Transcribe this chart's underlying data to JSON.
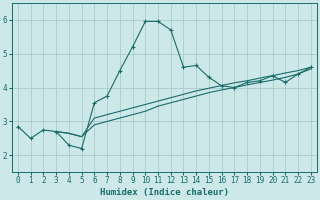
{
  "xlabel": "Humidex (Indice chaleur)",
  "bg_color": "#cce8e8",
  "grid_color": "#aacccc",
  "line_color": "#1a6b6b",
  "xlim": [
    -0.5,
    23.5
  ],
  "ylim": [
    1.5,
    6.5
  ],
  "yticks": [
    2,
    3,
    4,
    5,
    6
  ],
  "xticks": [
    0,
    1,
    2,
    3,
    4,
    5,
    6,
    7,
    8,
    9,
    10,
    11,
    12,
    13,
    14,
    15,
    16,
    17,
    18,
    19,
    20,
    21,
    22,
    23
  ],
  "curve1_x": [
    0,
    1,
    2,
    3,
    4,
    5,
    6,
    7,
    8,
    9,
    10,
    11,
    12,
    13,
    14,
    15,
    16,
    17,
    18,
    19,
    20,
    21,
    22,
    23
  ],
  "curve1_y": [
    2.85,
    2.5,
    2.75,
    2.7,
    2.3,
    2.2,
    3.55,
    3.75,
    4.5,
    5.2,
    5.95,
    5.95,
    5.7,
    4.6,
    4.65,
    4.3,
    4.05,
    4.0,
    4.15,
    4.2,
    4.35,
    4.15,
    4.4,
    4.6
  ],
  "curve2_x": [
    3,
    4,
    5,
    6,
    7,
    8,
    9,
    10,
    11,
    12,
    13,
    14,
    15,
    16,
    17,
    18,
    19,
    20,
    21,
    22,
    23
  ],
  "curve2_y": [
    2.7,
    2.65,
    2.55,
    2.9,
    3.0,
    3.1,
    3.2,
    3.3,
    3.45,
    3.55,
    3.65,
    3.75,
    3.85,
    3.93,
    4.0,
    4.08,
    4.15,
    4.22,
    4.3,
    4.4,
    4.55
  ],
  "curve3_x": [
    3,
    4,
    5,
    6,
    7,
    8,
    9,
    10,
    11,
    12,
    13,
    14,
    15,
    16,
    17,
    18,
    19,
    20,
    21,
    22,
    23
  ],
  "curve3_y": [
    2.7,
    2.65,
    2.55,
    3.1,
    3.2,
    3.3,
    3.4,
    3.5,
    3.6,
    3.7,
    3.8,
    3.9,
    3.98,
    4.06,
    4.14,
    4.2,
    4.28,
    4.35,
    4.43,
    4.5,
    4.6
  ]
}
